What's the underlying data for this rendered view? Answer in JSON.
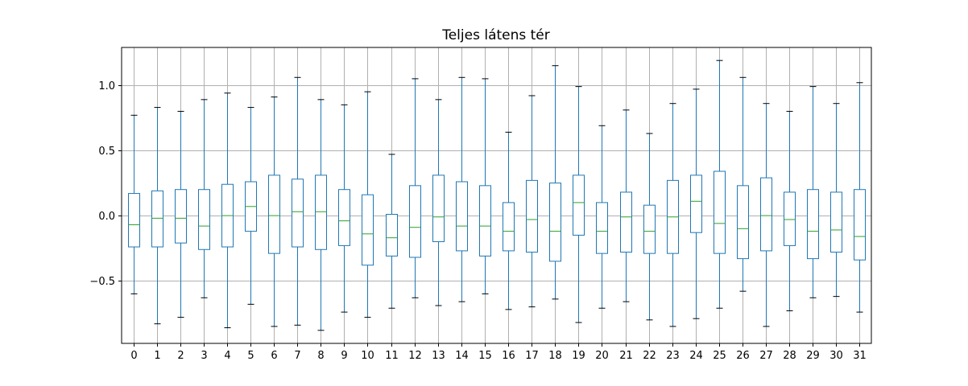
{
  "chart_data": {
    "type": "box",
    "title": "Teljes látens tér",
    "xlabel": "",
    "ylabel": "",
    "ylim": [
      -0.98,
      1.29
    ],
    "grid": true,
    "yticks": [
      -0.5,
      0.0,
      0.5,
      1.0
    ],
    "ytick_labels": [
      "−0.5",
      "0.0",
      "0.5",
      "1.0"
    ],
    "categories": [
      "0",
      "1",
      "2",
      "3",
      "4",
      "5",
      "6",
      "7",
      "8",
      "9",
      "10",
      "11",
      "12",
      "13",
      "14",
      "15",
      "16",
      "17",
      "18",
      "19",
      "20",
      "21",
      "22",
      "23",
      "24",
      "25",
      "26",
      "27",
      "28",
      "29",
      "30",
      "31"
    ],
    "boxes": [
      {
        "whislo": -0.6,
        "q1": -0.24,
        "med": -0.07,
        "q3": 0.17,
        "whishi": 0.77
      },
      {
        "whislo": -0.83,
        "q1": -0.24,
        "med": -0.02,
        "q3": 0.19,
        "whishi": 0.83
      },
      {
        "whislo": -0.78,
        "q1": -0.21,
        "med": -0.02,
        "q3": 0.2,
        "whishi": 0.8
      },
      {
        "whislo": -0.63,
        "q1": -0.26,
        "med": -0.08,
        "q3": 0.2,
        "whishi": 0.89
      },
      {
        "whislo": -0.86,
        "q1": -0.24,
        "med": 0.0,
        "q3": 0.24,
        "whishi": 0.94
      },
      {
        "whislo": -0.68,
        "q1": -0.12,
        "med": 0.07,
        "q3": 0.26,
        "whishi": 0.83
      },
      {
        "whislo": -0.85,
        "q1": -0.29,
        "med": 0.0,
        "q3": 0.31,
        "whishi": 0.91
      },
      {
        "whislo": -0.84,
        "q1": -0.24,
        "med": 0.03,
        "q3": 0.28,
        "whishi": 1.06
      },
      {
        "whislo": -0.88,
        "q1": -0.26,
        "med": 0.03,
        "q3": 0.31,
        "whishi": 0.89
      },
      {
        "whislo": -0.74,
        "q1": -0.23,
        "med": -0.04,
        "q3": 0.2,
        "whishi": 0.85
      },
      {
        "whislo": -0.78,
        "q1": -0.38,
        "med": -0.14,
        "q3": 0.16,
        "whishi": 0.95
      },
      {
        "whislo": -0.71,
        "q1": -0.31,
        "med": -0.17,
        "q3": 0.01,
        "whishi": 0.47
      },
      {
        "whislo": -0.63,
        "q1": -0.32,
        "med": -0.09,
        "q3": 0.23,
        "whishi": 1.05
      },
      {
        "whislo": -0.69,
        "q1": -0.2,
        "med": -0.01,
        "q3": 0.31,
        "whishi": 0.89
      },
      {
        "whislo": -0.66,
        "q1": -0.27,
        "med": -0.08,
        "q3": 0.26,
        "whishi": 1.06
      },
      {
        "whislo": -0.6,
        "q1": -0.31,
        "med": -0.08,
        "q3": 0.23,
        "whishi": 1.05
      },
      {
        "whislo": -0.72,
        "q1": -0.27,
        "med": -0.12,
        "q3": 0.1,
        "whishi": 0.64
      },
      {
        "whislo": -0.7,
        "q1": -0.28,
        "med": -0.03,
        "q3": 0.27,
        "whishi": 0.92
      },
      {
        "whislo": -0.64,
        "q1": -0.35,
        "med": -0.12,
        "q3": 0.25,
        "whishi": 1.15
      },
      {
        "whislo": -0.82,
        "q1": -0.15,
        "med": 0.1,
        "q3": 0.31,
        "whishi": 0.99
      },
      {
        "whislo": -0.71,
        "q1": -0.29,
        "med": -0.12,
        "q3": 0.1,
        "whishi": 0.69
      },
      {
        "whislo": -0.66,
        "q1": -0.28,
        "med": -0.01,
        "q3": 0.18,
        "whishi": 0.81
      },
      {
        "whislo": -0.8,
        "q1": -0.29,
        "med": -0.12,
        "q3": 0.08,
        "whishi": 0.63
      },
      {
        "whislo": -0.85,
        "q1": -0.29,
        "med": -0.01,
        "q3": 0.27,
        "whishi": 0.86
      },
      {
        "whislo": -0.79,
        "q1": -0.13,
        "med": 0.11,
        "q3": 0.31,
        "whishi": 0.97
      },
      {
        "whislo": -0.71,
        "q1": -0.29,
        "med": -0.06,
        "q3": 0.34,
        "whishi": 1.19
      },
      {
        "whislo": -0.58,
        "q1": -0.33,
        "med": -0.1,
        "q3": 0.23,
        "whishi": 1.06
      },
      {
        "whislo": -0.85,
        "q1": -0.27,
        "med": 0.0,
        "q3": 0.29,
        "whishi": 0.86
      },
      {
        "whislo": -0.73,
        "q1": -0.23,
        "med": -0.03,
        "q3": 0.18,
        "whishi": 0.8
      },
      {
        "whislo": -0.63,
        "q1": -0.33,
        "med": -0.12,
        "q3": 0.2,
        "whishi": 0.99
      },
      {
        "whislo": -0.62,
        "q1": -0.28,
        "med": -0.11,
        "q3": 0.18,
        "whishi": 0.86
      },
      {
        "whislo": -0.74,
        "q1": -0.34,
        "med": -0.16,
        "q3": 0.2,
        "whishi": 1.02
      }
    ],
    "colors": {
      "box": "#1f77b4",
      "median": "#2ca02c",
      "cap": "#000000",
      "grid": "#b0b0b0",
      "axis": "#000000"
    }
  }
}
